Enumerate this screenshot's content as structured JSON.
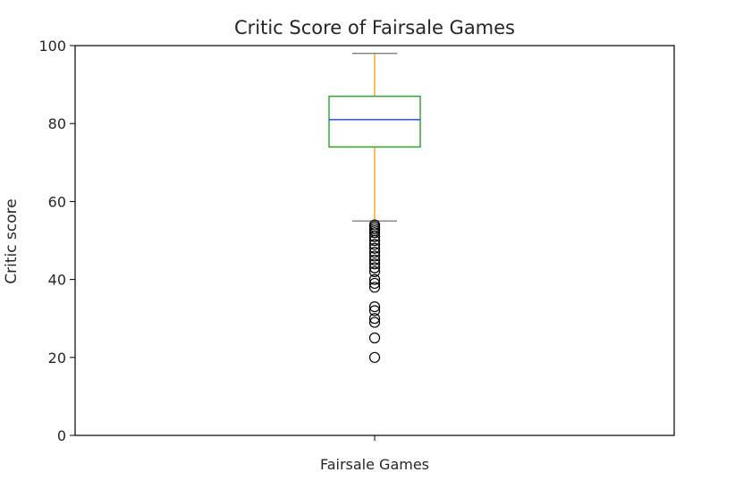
{
  "chart_data": {
    "type": "box",
    "title": "Critic Score of Fairsale Games",
    "xlabel": "",
    "ylabel": "Critic score",
    "categories": [
      "Fairsale Games"
    ],
    "ylim": [
      0,
      100
    ],
    "yticks": [
      0,
      20,
      40,
      60,
      80,
      100
    ],
    "grid": false,
    "box": {
      "whisker_low": 55,
      "q1": 74,
      "median": 81,
      "q3": 87,
      "whisker_high": 98
    },
    "outliers": [
      54,
      53.5,
      53,
      52.5,
      52,
      51,
      50,
      49,
      48,
      47,
      46,
      45,
      44,
      43,
      42,
      40,
      39,
      38,
      33,
      32,
      30,
      29,
      25,
      20
    ],
    "colors": {
      "box": "#2ca02c",
      "median": "#1f3fff",
      "whisker": "#ff9f1c",
      "cap": "#7f7f7f",
      "flier": "#000000",
      "axes": "#000000"
    }
  }
}
